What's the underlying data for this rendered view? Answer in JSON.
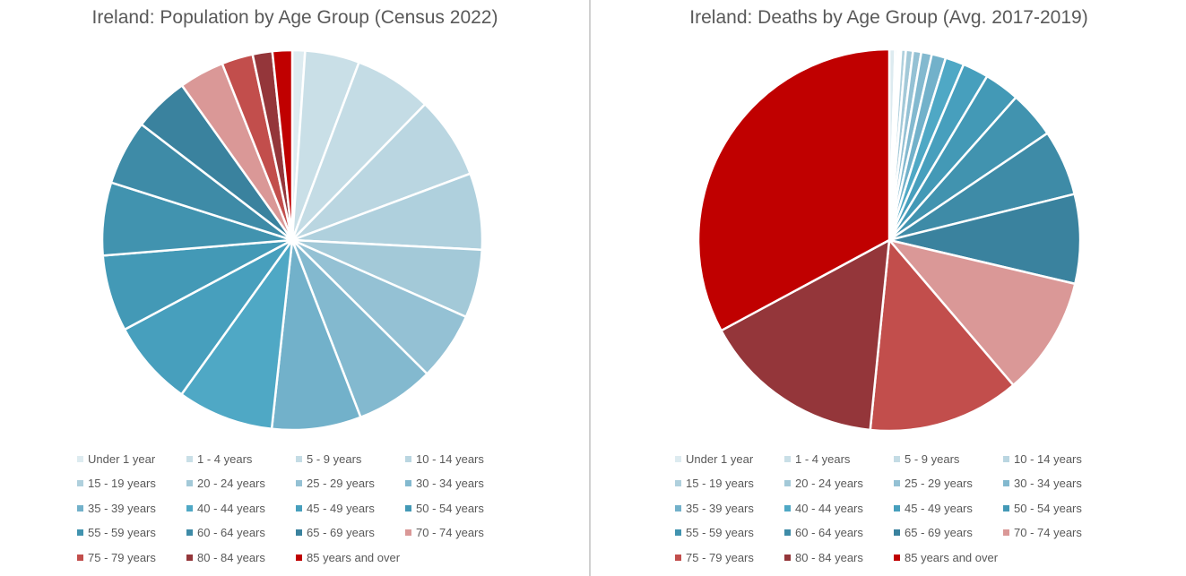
{
  "chart_data": [
    {
      "type": "pie",
      "title": "Ireland: Population by Age Group (Census 2022)",
      "categories": [
        "Under 1 year",
        "1 - 4 years",
        "5 - 9 years",
        "10 - 14 years",
        "15 - 19 years",
        "20 - 24 years",
        "25 - 29 years",
        "30 - 34 years",
        "35 - 39 years",
        "40 - 44 years",
        "45 - 49 years",
        "50 - 54 years",
        "55 - 59 years",
        "60 - 64 years",
        "65 - 69 years",
        "70 - 74 years",
        "75 - 79 years",
        "80 - 84 years",
        "85 years and over"
      ],
      "values": [
        1.1,
        4.7,
        6.7,
        7.1,
        6.6,
        5.9,
        5.9,
        6.8,
        7.7,
        8.3,
        7.4,
        6.6,
        6.3,
        5.6,
        4.8,
        3.9,
        2.7,
        1.7,
        1.7
      ],
      "colors": [
        "#ddebf0",
        "#c9dfe7",
        "#c4dce5",
        "#bad6e1",
        "#afd0dd",
        "#a3c9d8",
        "#94c1d4",
        "#83b9cf",
        "#72b1ca",
        "#4fa8c5",
        "#479fbd",
        "#4399b6",
        "#4193af",
        "#3e8ba7",
        "#3a829e",
        "#da9897",
        "#c24e4c",
        "#94363a",
        "#c00000"
      ],
      "legend_position": "bottom"
    },
    {
      "type": "pie",
      "title": "Ireland: Deaths by Age Group (Avg. 2017-2019)",
      "categories": [
        "Under 1 year",
        "1 - 4 years",
        "5 - 9 years",
        "10 - 14 years",
        "15 - 19 years",
        "20 - 24 years",
        "25 - 29 years",
        "30 - 34 years",
        "35 - 39 years",
        "40 - 44 years",
        "45 - 49 years",
        "50 - 54 years",
        "55 - 59 years",
        "60 - 64 years",
        "65 - 69 years",
        "70 - 74 years",
        "75 - 79 years",
        "80 - 84 years",
        "85 years and over"
      ],
      "values": [
        0.5,
        0.2,
        0.15,
        0.15,
        0.4,
        0.6,
        0.7,
        0.9,
        1.2,
        1.6,
        2.2,
        3.0,
        4.0,
        5.6,
        7.6,
        10.1,
        12.9,
        15.6,
        33.0
      ],
      "colors": [
        "#ddebf0",
        "#c9dfe7",
        "#c4dce5",
        "#bad6e1",
        "#afd0dd",
        "#a3c9d8",
        "#94c1d4",
        "#83b9cf",
        "#72b1ca",
        "#4fa8c5",
        "#479fbd",
        "#4399b6",
        "#4193af",
        "#3e8ba7",
        "#3a829e",
        "#da9897",
        "#c24e4c",
        "#94363a",
        "#c00000"
      ],
      "legend_position": "bottom"
    }
  ]
}
